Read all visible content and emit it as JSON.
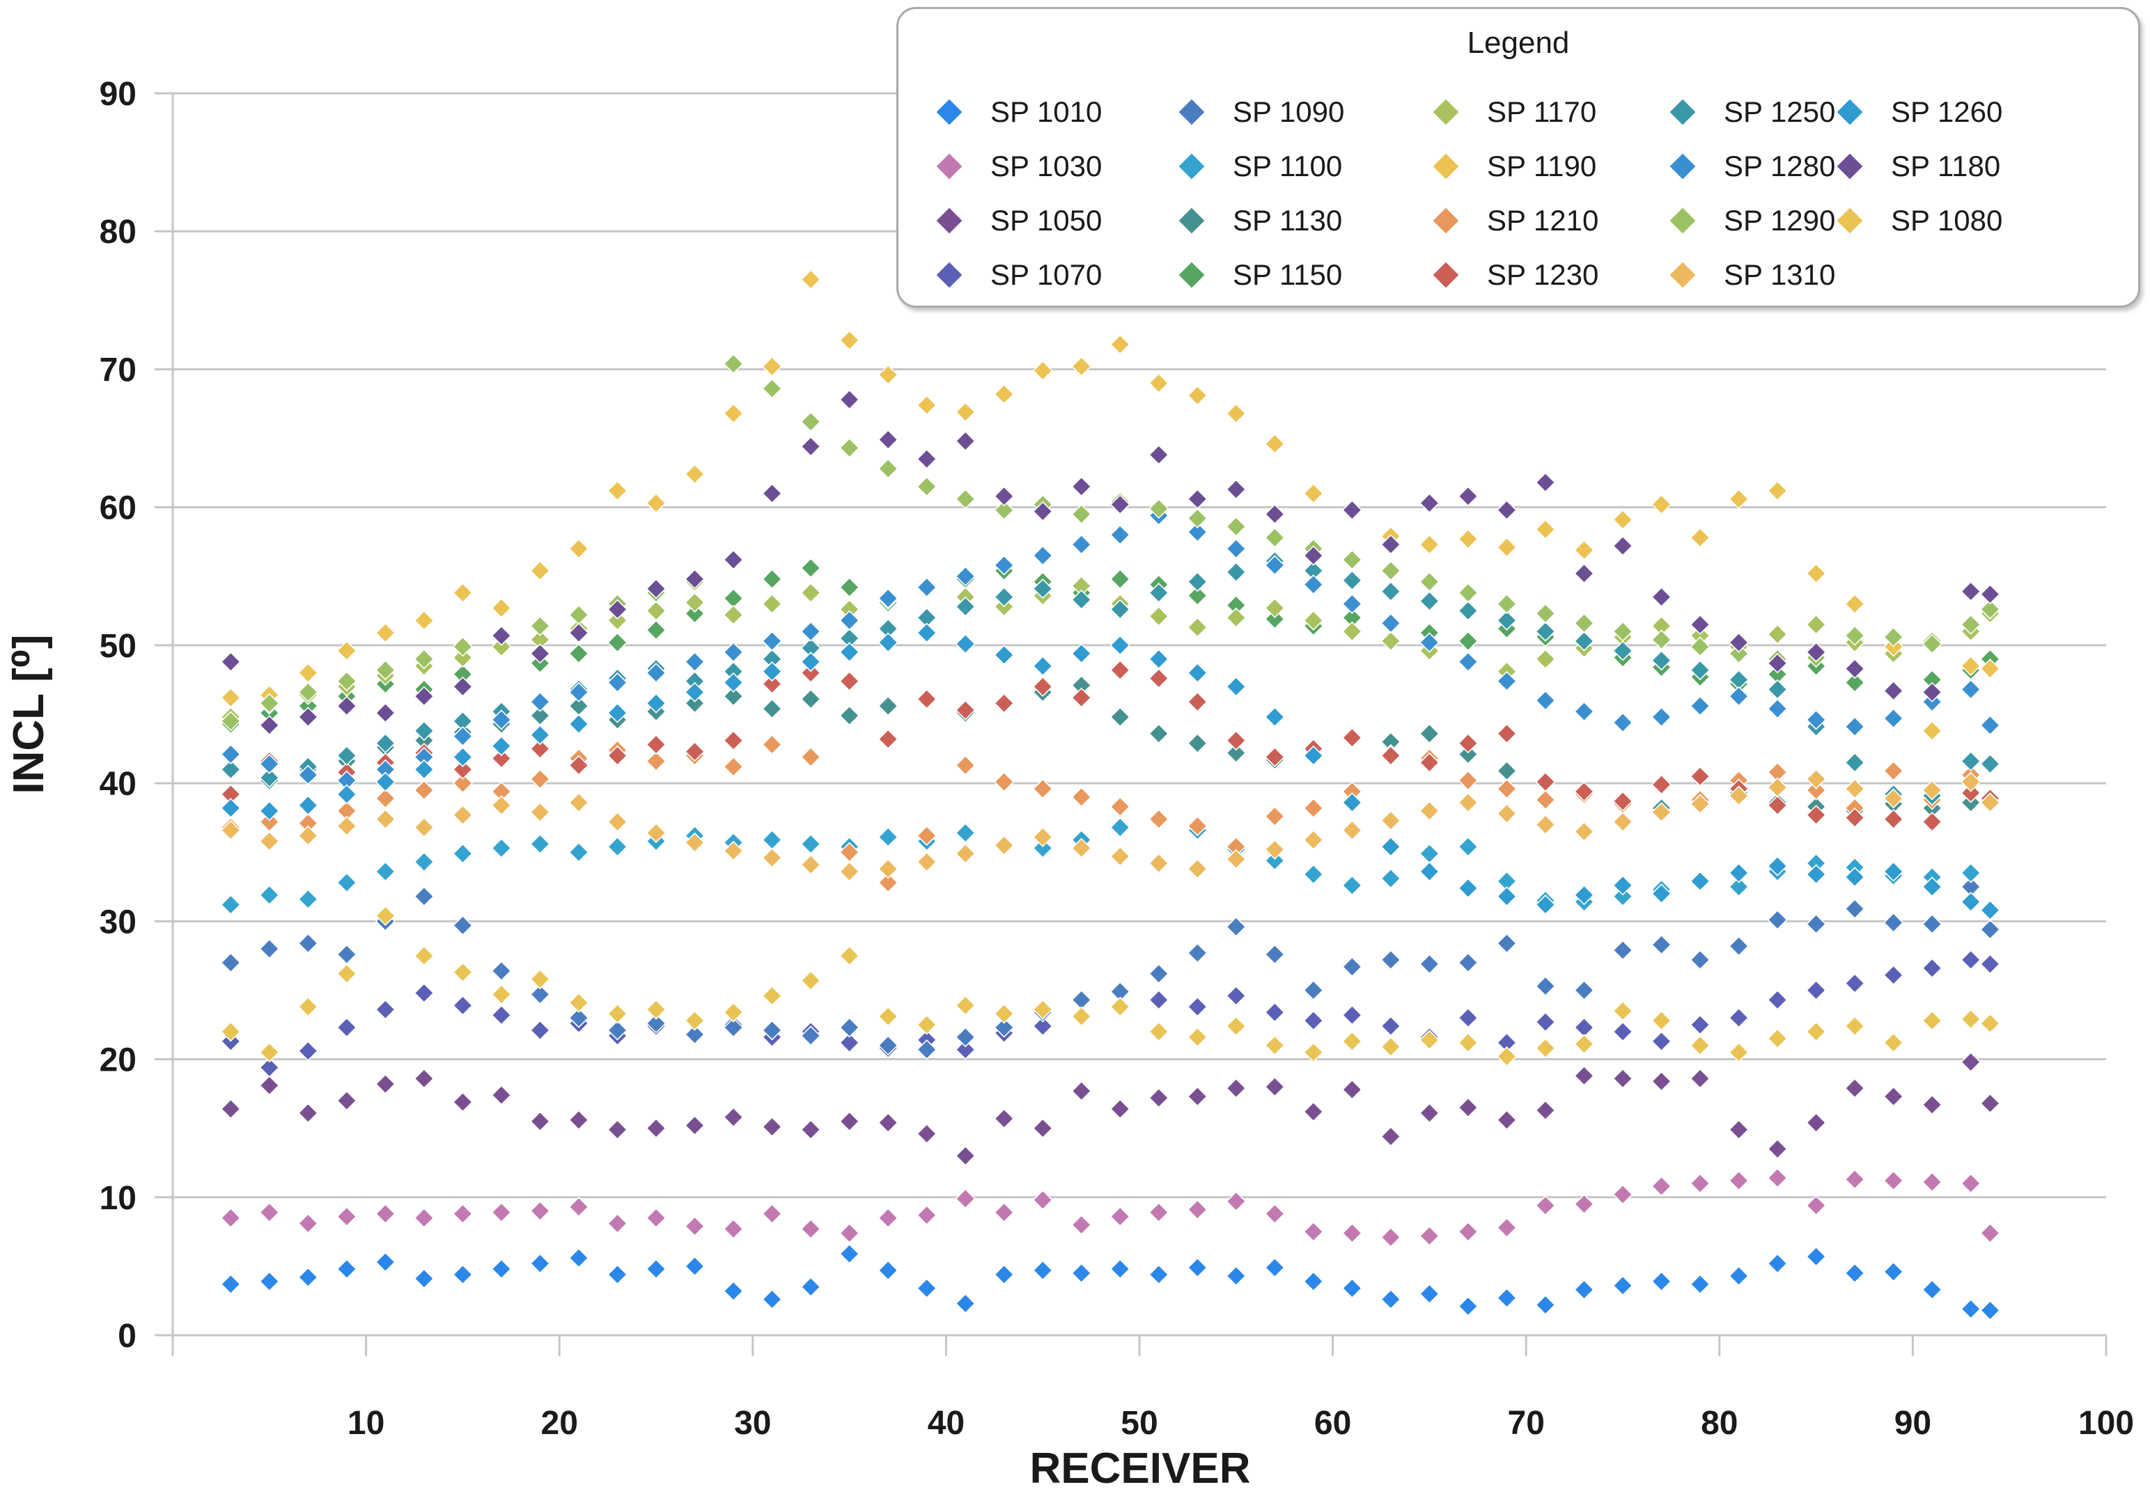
{
  "legend": {
    "title": "Legend"
  },
  "chart_data": {
    "type": "scatter",
    "title": "",
    "xlabel": "RECEIVER",
    "ylabel": "INCL [⁰]",
    "xlim": [
      0,
      100
    ],
    "ylim": [
      0,
      90
    ],
    "x_ticks": [
      "10",
      "20",
      "30",
      "40",
      "50",
      "60",
      "70",
      "80",
      "90",
      "100"
    ],
    "x_tick_values": [
      10,
      20,
      30,
      40,
      50,
      60,
      70,
      80,
      90,
      100
    ],
    "y_ticks": [
      "0",
      "10",
      "20",
      "30",
      "40",
      "50",
      "60",
      "70",
      "80",
      "90"
    ],
    "y_tick_values": [
      0,
      10,
      20,
      30,
      40,
      50,
      60,
      70,
      80,
      90
    ],
    "grid": true,
    "legend_position": "top-right",
    "marker": "diamond",
    "x": [
      3,
      5,
      7,
      9,
      11,
      13,
      15,
      17,
      19,
      21,
      23,
      25,
      27,
      29,
      31,
      33,
      35,
      37,
      39,
      41,
      43,
      45,
      47,
      49,
      51,
      53,
      55,
      57,
      59,
      61,
      63,
      65,
      67,
      69,
      71,
      73,
      75,
      77,
      79,
      81,
      83,
      85,
      87,
      89,
      91,
      93,
      94
    ],
    "series": [
      {
        "name": "SP 1010",
        "color": "#2b87e9",
        "y": [
          3.7,
          3.9,
          4.2,
          4.8,
          5.3,
          4.1,
          4.4,
          4.8,
          5.2,
          5.6,
          4.4,
          4.8,
          5.0,
          3.2,
          2.6,
          3.5,
          5.9,
          4.7,
          3.4,
          2.3,
          4.4,
          4.7,
          4.5,
          4.8,
          4.4,
          4.9,
          4.3,
          4.9,
          3.9,
          3.4,
          2.6,
          3.0,
          2.1,
          2.7,
          2.2,
          3.3,
          3.6,
          3.9,
          3.7,
          4.3,
          5.2,
          5.7,
          4.5,
          4.6,
          3.3,
          1.9,
          1.8
        ]
      },
      {
        "name": "SP 1030",
        "color": "#c279b2",
        "y": [
          8.5,
          8.9,
          8.1,
          8.6,
          8.8,
          8.5,
          8.8,
          8.9,
          9.0,
          9.3,
          8.1,
          8.5,
          7.9,
          7.7,
          8.8,
          7.7,
          7.4,
          8.5,
          8.7,
          9.9,
          8.9,
          9.8,
          8.0,
          8.6,
          8.9,
          9.1,
          9.7,
          8.8,
          7.5,
          7.4,
          7.1,
          7.2,
          7.5,
          7.8,
          9.4,
          9.5,
          10.2,
          10.8,
          11.0,
          11.2,
          11.4,
          9.4,
          11.3,
          11.2,
          11.1,
          11.0,
          7.4
        ]
      },
      {
        "name": "SP 1050",
        "color": "#7a4f92",
        "y": [
          16.4,
          18.1,
          16.1,
          17.0,
          18.2,
          18.6,
          16.9,
          17.4,
          15.5,
          15.6,
          14.9,
          15.0,
          15.2,
          15.8,
          15.1,
          14.9,
          15.5,
          15.4,
          14.6,
          13.0,
          15.7,
          15.0,
          17.7,
          16.4,
          17.2,
          17.3,
          17.9,
          18.0,
          16.2,
          17.8,
          14.4,
          16.1,
          16.5,
          15.6,
          16.3,
          18.8,
          18.6,
          18.4,
          18.6,
          14.9,
          13.5,
          15.4,
          17.9,
          17.3,
          16.7,
          19.8,
          16.8
        ]
      },
      {
        "name": "SP 1070",
        "color": "#5a60b5",
        "y": [
          21.3,
          19.4,
          20.6,
          22.3,
          23.6,
          24.8,
          23.9,
          23.2,
          22.1,
          22.6,
          21.7,
          22.4,
          21.9,
          22.5,
          21.6,
          22.0,
          21.2,
          20.8,
          21.4,
          20.7,
          21.9,
          22.4,
          23.1,
          23.7,
          24.3,
          23.8,
          24.6,
          23.4,
          22.8,
          23.2,
          22.4,
          21.6,
          23.0,
          21.2,
          22.7,
          22.3,
          22.0,
          21.3,
          22.5,
          23.0,
          24.3,
          25.0,
          25.5,
          26.1,
          26.6,
          27.2,
          26.9
        ]
      },
      {
        "name": "SP 1090",
        "color": "#4a7dc0",
        "y": [
          27.0,
          28.0,
          28.4,
          27.6,
          30.0,
          31.8,
          29.7,
          26.4,
          24.7,
          23.0,
          22.1,
          22.6,
          21.8,
          22.3,
          22.1,
          21.7,
          22.3,
          21.0,
          20.7,
          21.6,
          22.3,
          23.4,
          24.3,
          24.9,
          26.2,
          27.7,
          29.6,
          27.6,
          25.0,
          26.7,
          27.2,
          26.9,
          27.0,
          28.4,
          25.3,
          25.0,
          27.9,
          28.3,
          27.2,
          28.2,
          30.1,
          29.8,
          30.9,
          29.9,
          29.8,
          32.5,
          29.4
        ]
      },
      {
        "name": "SP 1100",
        "color": "#35a3cf",
        "y": [
          31.2,
          31.9,
          31.6,
          32.8,
          33.6,
          34.3,
          34.9,
          35.3,
          35.6,
          35.0,
          35.4,
          35.8,
          36.2,
          35.7,
          35.9,
          35.6,
          35.4,
          36.1,
          35.8,
          36.4,
          35.6,
          35.3,
          35.9,
          36.8,
          37.3,
          36.6,
          35.2,
          34.4,
          33.4,
          32.6,
          33.1,
          34.9,
          35.4,
          32.9,
          31.5,
          31.4,
          31.8,
          32.3,
          33.0,
          32.5,
          33.6,
          34.2,
          33.9,
          33.3,
          33.2,
          33.5,
          30.7
        ]
      },
      {
        "name": "SP 1130",
        "color": "#459190",
        "y": [
          40.9,
          40.2,
          41.0,
          41.6,
          42.6,
          43.1,
          43.7,
          44.3,
          44.9,
          45.6,
          44.6,
          45.2,
          45.8,
          46.3,
          45.4,
          46.1,
          44.9,
          45.6,
          46.2,
          45.1,
          45.9,
          46.6,
          47.1,
          44.8,
          43.6,
          42.9,
          42.2,
          41.7,
          42.5,
          43.4,
          43.0,
          43.6,
          42.1,
          40.9,
          40.2,
          39.1,
          38.4,
          38.2,
          38.9,
          39.3,
          38.6,
          38.3,
          38.0,
          38.5,
          38.2,
          38.6,
          38.9
        ]
      },
      {
        "name": "SP 1150",
        "color": "#56a560",
        "y": [
          44.3,
          45.1,
          45.6,
          46.3,
          47.2,
          46.8,
          47.9,
          49.8,
          48.7,
          49.4,
          50.2,
          51.1,
          52.3,
          53.4,
          54.8,
          55.6,
          54.2,
          53.1,
          54.0,
          54.8,
          55.4,
          54.6,
          53.8,
          54.8,
          54.4,
          53.6,
          52.9,
          51.9,
          51.4,
          52.0,
          51.6,
          50.9,
          50.3,
          51.2,
          50.6,
          49.8,
          49.1,
          48.4,
          47.7,
          47.2,
          47.9,
          48.5,
          47.3,
          46.6,
          47.5,
          48.2,
          49.0
        ]
      },
      {
        "name": "SP 1170",
        "color": "#a9c25e",
        "y": [
          44.8,
          45.7,
          46.4,
          47.0,
          47.8,
          48.5,
          49.1,
          49.9,
          50.4,
          51.2,
          51.8,
          52.5,
          53.1,
          52.2,
          53.0,
          53.8,
          52.6,
          53.3,
          54.1,
          53.5,
          52.8,
          53.6,
          54.3,
          53.0,
          52.1,
          51.3,
          52.0,
          52.7,
          51.8,
          51.0,
          50.3,
          49.6,
          48.8,
          48.1,
          49.0,
          49.8,
          50.6,
          51.4,
          50.7,
          49.9,
          50.8,
          51.5,
          50.2,
          49.4,
          50.3,
          51.0,
          52.3
        ]
      },
      {
        "name": "SP 1190",
        "color": "#ecc252",
        "y": [
          46.2,
          46.4,
          48.0,
          49.6,
          50.9,
          51.8,
          53.8,
          52.7,
          55.4,
          57.0,
          61.2,
          60.3,
          62.4,
          66.8,
          70.2,
          76.5,
          72.1,
          69.6,
          67.4,
          66.9,
          68.2,
          69.9,
          70.2,
          71.8,
          69.0,
          68.1,
          66.8,
          64.6,
          61.0,
          59.7,
          57.9,
          57.3,
          57.7,
          57.1,
          58.4,
          56.9,
          59.1,
          60.2,
          57.8,
          60.6,
          61.2,
          55.2,
          53.0,
          49.9,
          43.8,
          48.5,
          48.3
        ]
      },
      {
        "name": "SP 1210",
        "color": "#e8985c",
        "y": [
          36.8,
          37.2,
          37.1,
          38.0,
          38.9,
          39.5,
          40.0,
          39.4,
          40.3,
          41.8,
          42.4,
          41.6,
          42.0,
          41.2,
          42.8,
          41.9,
          35.0,
          32.8,
          36.2,
          41.3,
          40.1,
          39.6,
          39.0,
          38.3,
          37.4,
          36.9,
          35.4,
          37.6,
          38.2,
          39.4,
          42.1,
          41.8,
          40.2,
          39.6,
          38.8,
          39.2,
          38.5,
          37.9,
          38.8,
          40.2,
          40.8,
          39.5,
          38.2,
          40.9,
          38.8,
          40.6,
          38.5
        ]
      },
      {
        "name": "SP 1230",
        "color": "#cb5f56",
        "y": [
          39.2,
          41.6,
          41.2,
          40.8,
          41.5,
          42.2,
          41.0,
          41.8,
          42.5,
          41.3,
          42.0,
          42.8,
          42.3,
          43.1,
          47.2,
          48.0,
          47.4,
          43.2,
          46.1,
          45.3,
          45.8,
          47.0,
          46.2,
          48.2,
          47.6,
          45.9,
          43.1,
          41.9,
          42.5,
          43.3,
          42.0,
          41.5,
          42.9,
          43.6,
          40.1,
          39.4,
          38.7,
          39.9,
          40.5,
          39.6,
          38.4,
          37.7,
          37.5,
          37.4,
          37.2,
          39.3,
          38.9
        ]
      },
      {
        "name": "SP 1250",
        "color": "#3a97a8",
        "y": [
          41.0,
          40.4,
          41.2,
          42.0,
          42.9,
          43.8,
          44.5,
          45.2,
          46.0,
          46.8,
          47.6,
          48.3,
          47.4,
          48.1,
          49.0,
          49.8,
          50.5,
          51.2,
          52.0,
          52.8,
          53.5,
          54.1,
          53.3,
          52.6,
          53.8,
          54.6,
          55.3,
          56.1,
          55.4,
          54.7,
          53.9,
          53.2,
          52.5,
          51.8,
          51.0,
          50.3,
          49.6,
          48.9,
          48.2,
          47.5,
          46.8,
          44.1,
          41.5,
          39.2,
          39.1,
          41.6,
          41.4
        ]
      },
      {
        "name": "SP 1280",
        "color": "#3a8fd0",
        "y": [
          42.1,
          41.4,
          40.6,
          40.2,
          41.0,
          41.9,
          43.4,
          44.6,
          45.9,
          46.6,
          47.3,
          48.0,
          48.8,
          49.5,
          50.3,
          51.0,
          51.8,
          53.4,
          54.2,
          55.0,
          55.8,
          56.5,
          57.3,
          58.0,
          59.4,
          58.2,
          57.0,
          55.8,
          54.4,
          53.0,
          51.6,
          50.2,
          48.8,
          47.4,
          46.0,
          45.2,
          44.4,
          44.8,
          45.6,
          46.3,
          45.4,
          44.6,
          44.1,
          44.7,
          45.9,
          46.8,
          44.2
        ]
      },
      {
        "name": "SP 1290",
        "color": "#9bc164",
        "y": [
          44.5,
          45.8,
          46.6,
          47.4,
          48.2,
          49.0,
          49.9,
          50.7,
          51.4,
          52.2,
          53.0,
          53.8,
          54.6,
          70.4,
          68.6,
          66.2,
          64.3,
          62.8,
          61.5,
          60.6,
          59.8,
          60.2,
          59.5,
          60.4,
          59.9,
          59.2,
          58.6,
          57.8,
          57.0,
          56.2,
          55.4,
          54.6,
          53.8,
          53.0,
          52.3,
          51.6,
          51.0,
          50.4,
          49.9,
          49.4,
          49.0,
          49.1,
          50.7,
          50.6,
          50.1,
          51.5,
          52.6
        ]
      },
      {
        "name": "SP 1310",
        "color": "#edb95e",
        "y": [
          36.6,
          35.8,
          36.2,
          36.9,
          37.4,
          36.8,
          37.7,
          38.4,
          37.9,
          38.6,
          37.2,
          36.4,
          35.7,
          35.1,
          34.6,
          34.1,
          33.6,
          33.8,
          34.3,
          34.9,
          35.5,
          36.1,
          35.3,
          34.7,
          34.2,
          33.8,
          34.5,
          35.2,
          35.9,
          36.6,
          37.3,
          38.0,
          38.6,
          37.8,
          37.0,
          36.5,
          37.2,
          37.9,
          38.5,
          39.1,
          39.7,
          40.3,
          39.6,
          38.9,
          39.5,
          40.1,
          38.6
        ]
      },
      {
        "name": "SP 1260",
        "color": "#2f9bd0",
        "y": [
          38.2,
          38.0,
          38.4,
          39.2,
          40.1,
          41.0,
          41.9,
          42.7,
          43.5,
          44.3,
          45.1,
          45.8,
          46.6,
          47.3,
          48.1,
          48.8,
          49.5,
          50.2,
          50.9,
          50.1,
          49.3,
          48.5,
          49.4,
          50.0,
          49.0,
          48.0,
          47.0,
          44.8,
          42.0,
          38.6,
          35.4,
          33.6,
          32.4,
          31.8,
          31.2,
          31.9,
          32.6,
          32.0,
          32.9,
          33.5,
          34.0,
          33.4,
          33.2,
          33.6,
          32.5,
          31.4,
          30.8
        ]
      },
      {
        "name": "SP 1180",
        "color": "#6b4e93",
        "y": [
          48.8,
          44.2,
          44.8,
          45.6,
          45.1,
          46.3,
          47.0,
          50.7,
          49.4,
          50.9,
          52.6,
          54.1,
          54.8,
          56.2,
          61.0,
          64.4,
          67.8,
          64.9,
          63.5,
          64.8,
          60.8,
          59.7,
          61.5,
          60.2,
          63.8,
          60.6,
          61.3,
          59.5,
          56.5,
          59.8,
          57.3,
          60.3,
          60.8,
          59.8,
          61.8,
          55.2,
          57.2,
          53.5,
          51.5,
          50.2,
          48.7,
          49.5,
          48.3,
          46.7,
          46.6,
          53.9,
          53.7
        ]
      },
      {
        "name": "SP 1080",
        "color": "#e9c454",
        "y": [
          22.0,
          20.5,
          23.8,
          26.2,
          30.4,
          27.5,
          26.3,
          24.7,
          25.8,
          24.1,
          23.3,
          23.6,
          22.8,
          23.4,
          24.6,
          25.7,
          27.5,
          23.1,
          22.5,
          23.9,
          23.3,
          23.6,
          23.1,
          23.8,
          22.0,
          21.6,
          22.4,
          21.0,
          20.5,
          21.3,
          20.9,
          21.4,
          21.2,
          20.2,
          20.8,
          21.1,
          23.5,
          22.8,
          21.0,
          20.5,
          21.5,
          22.0,
          22.4,
          21.2,
          22.8,
          22.9,
          22.6
        ]
      }
    ]
  }
}
